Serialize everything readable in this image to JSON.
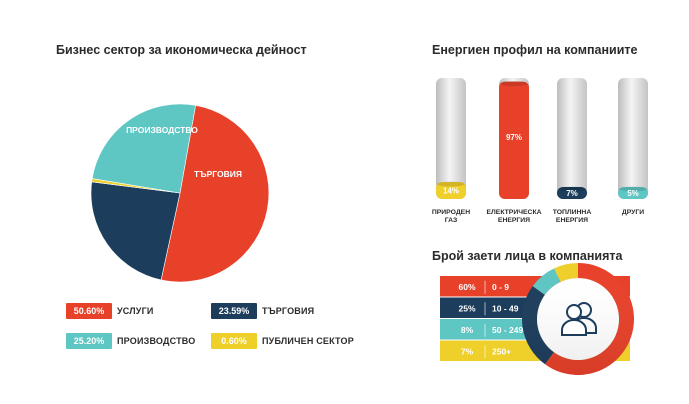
{
  "titles": {
    "sector": "Бизнес сектор за икономическа дейност",
    "energy": "Енергиен профил на компаниите",
    "employees": "Брой заети лица в компанията"
  },
  "colors": {
    "red": "#E8412A",
    "teal": "#5EC6C3",
    "navy": "#1C3D5C",
    "yellow": "#EFCF2A",
    "gray": "#D9D9D9"
  },
  "chart_data": [
    {
      "type": "pie",
      "title": "Бизнес сектор за икономическа дейност",
      "slices": [
        {
          "label": "УСЛУГИ",
          "value": 50.6,
          "value_text": "50.60%",
          "color": "#E8412A"
        },
        {
          "label": "ТЪРГОВИЯ",
          "value": 23.59,
          "value_text": "23.59%",
          "color": "#1C3D5C"
        },
        {
          "label": "ПУБЛИЧЕН СЕКТОР",
          "value": 0.6,
          "value_text": "0.60%",
          "color": "#EFCF2A"
        },
        {
          "label": "ПРОИЗВОДСТВО",
          "value": 25.2,
          "value_text": "25.20%",
          "color": "#5EC6C3"
        }
      ],
      "legend_placement": "bottom"
    },
    {
      "type": "bar",
      "title": "Енергиен профил на компаниите",
      "categories": [
        [
          "ПРИРОДЕН",
          "ГАЗ"
        ],
        [
          "ЕЛЕКТРИЧЕСКА",
          "ЕНЕРГИЯ"
        ],
        [
          "ТОПЛИННА",
          "ЕНЕРГИЯ"
        ],
        [
          "ДРУГИ"
        ]
      ],
      "values": [
        14,
        97,
        7,
        5
      ],
      "value_labels": [
        "14%",
        "97%",
        "7%",
        "5%"
      ],
      "colors": [
        "#EFCF2A",
        "#E8412A",
        "#1C3D5C",
        "#5EC6C3"
      ],
      "ylim": [
        0,
        100
      ]
    },
    {
      "type": "bar",
      "title": "Брой заети лица в компанията",
      "categories": [
        "0 - 9",
        "10 - 49",
        "50 - 249",
        "250+"
      ],
      "values": [
        60,
        25,
        8,
        7
      ],
      "value_labels": [
        "60%",
        "25%",
        "8%",
        "7%"
      ],
      "colors": [
        "#E8412A",
        "#1C3D5C",
        "#5EC6C3",
        "#EFCF2A"
      ],
      "icon": "people-icon"
    }
  ]
}
